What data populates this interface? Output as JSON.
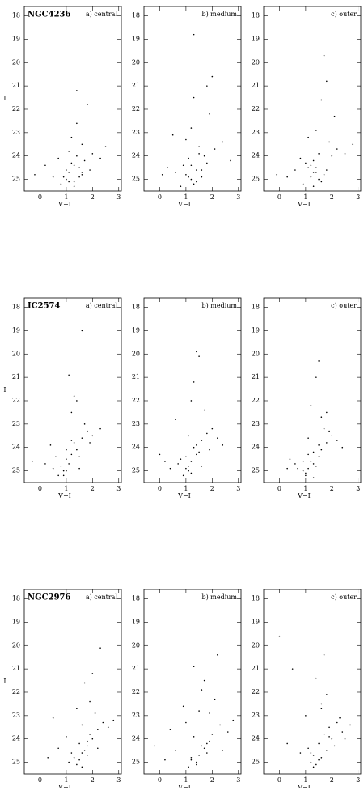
{
  "chart_data": [
    {
      "type": "scatter",
      "title": "NGC4236",
      "panel_label": "a) central",
      "xlabel": "V−I",
      "ylabel": "I",
      "color": "#000000",
      "xlim": [
        -0.6,
        3.1
      ],
      "ylim": [
        25.5,
        17.6
      ],
      "xticks": [
        0,
        1,
        2,
        3
      ],
      "yticks": [
        18,
        19,
        20,
        21,
        22,
        23,
        24,
        25
      ],
      "x": [
        0.9,
        1.1,
        1.3,
        1.5,
        1.2,
        0.8,
        1.6,
        1.4,
        1.0,
        1.7,
        2.0,
        1.3,
        0.5,
        1.1,
        1.9,
        2.3,
        1.4,
        0.2,
        1.2,
        1.6,
        1.8,
        1.0,
        1.5,
        2.5,
        0.7,
        1.3,
        1.1,
        1.4,
        -0.2,
        1.6
      ],
      "y": [
        24.9,
        24.7,
        25.1,
        24.5,
        24.3,
        25.2,
        24.8,
        24.0,
        24.6,
        24.2,
        23.9,
        25.3,
        24.9,
        23.8,
        24.6,
        24.1,
        22.6,
        24.4,
        23.2,
        23.5,
        21.8,
        25.0,
        24.9,
        23.6,
        24.1,
        24.4,
        25.1,
        21.2,
        24.8,
        24.7
      ]
    },
    {
      "type": "scatter",
      "panel_label": "b) medium",
      "xlabel": "V−I",
      "color": "#000000",
      "xlim": [
        -0.6,
        3.1
      ],
      "ylim": [
        25.5,
        17.6
      ],
      "xticks": [
        0,
        1,
        2,
        3
      ],
      "yticks": [
        18,
        19,
        20,
        21,
        22,
        23,
        24,
        25
      ],
      "x": [
        1.0,
        1.2,
        1.4,
        0.9,
        1.6,
        1.3,
        1.1,
        1.8,
        0.6,
        1.5,
        2.1,
        1.2,
        0.3,
        1.7,
        1.4,
        2.4,
        1.0,
        1.9,
        1.3,
        0.8,
        1.6,
        2.0,
        1.1,
        1.5,
        2.7,
        0.1,
        1.3,
        1.8,
        1.2,
        0.5
      ],
      "y": [
        24.8,
        25.0,
        24.6,
        24.4,
        24.9,
        25.2,
        24.1,
        24.3,
        24.7,
        23.9,
        23.7,
        22.8,
        24.5,
        24.0,
        25.1,
        23.4,
        23.3,
        22.2,
        21.5,
        25.3,
        24.6,
        20.6,
        24.9,
        23.6,
        24.2,
        24.8,
        18.8,
        21.0,
        24.4,
        23.1
      ]
    },
    {
      "type": "scatter",
      "panel_label": "c) outer",
      "xlabel": "V−I",
      "color": "#000000",
      "xlim": [
        -0.6,
        3.1
      ],
      "ylim": [
        25.5,
        17.6
      ],
      "xticks": [
        0,
        1,
        2,
        3
      ],
      "yticks": [
        18,
        19,
        20,
        21,
        22,
        23,
        24,
        25
      ],
      "x": [
        1.2,
        1.4,
        1.6,
        1.1,
        1.3,
        1.8,
        0.9,
        1.5,
        2.0,
        1.7,
        1.3,
        0.6,
        2.2,
        1.4,
        1.9,
        1.0,
        2.5,
        0.3,
        1.6,
        1.2,
        1.8,
        2.1,
        1.5,
        0.8,
        1.3,
        2.8,
        1.7,
        1.1,
        -0.1,
        1.4
      ],
      "y": [
        24.9,
        24.7,
        25.1,
        24.5,
        24.2,
        24.6,
        25.2,
        23.9,
        24.0,
        24.8,
        25.3,
        24.6,
        23.7,
        22.9,
        23.4,
        24.3,
        23.9,
        24.9,
        21.6,
        24.4,
        20.8,
        22.3,
        25.0,
        24.1,
        24.7,
        23.5,
        19.7,
        23.2,
        24.8,
        24.5
      ]
    },
    {
      "type": "scatter",
      "title": "IC2574",
      "panel_label": "a) central",
      "xlabel": "V−I",
      "ylabel": "I",
      "color": "#000000",
      "xlim": [
        -0.6,
        3.1
      ],
      "ylim": [
        25.5,
        17.6
      ],
      "xticks": [
        0,
        1,
        2,
        3
      ],
      "yticks": [
        18,
        19,
        20,
        21,
        22,
        23,
        24,
        25
      ],
      "x": [
        0.8,
        1.0,
        1.2,
        0.9,
        1.4,
        1.1,
        0.7,
        1.3,
        1.6,
        1.5,
        0.5,
        1.8,
        1.0,
        0.2,
        1.7,
        1.2,
        2.0,
        0.4,
        1.3,
        1.5,
        0.9,
        1.9,
        1.1,
        2.3,
        0.6,
        1.4,
        1.0,
        1.6,
        -0.3,
        1.2
      ],
      "y": [
        24.8,
        24.5,
        24.3,
        25.0,
        24.1,
        24.7,
        25.2,
        23.8,
        23.6,
        24.4,
        24.9,
        23.3,
        24.1,
        24.7,
        23.0,
        22.5,
        23.5,
        23.9,
        21.8,
        24.9,
        25.2,
        23.8,
        20.9,
        23.2,
        24.4,
        22.0,
        25.0,
        19.0,
        24.6,
        23.7
      ]
    },
    {
      "type": "scatter",
      "panel_label": "b) medium",
      "xlabel": "V−I",
      "color": "#000000",
      "xlim": [
        -0.6,
        3.1
      ],
      "ylim": [
        25.5,
        17.6
      ],
      "xticks": [
        0,
        1,
        2,
        3
      ],
      "yticks": [
        18,
        19,
        20,
        21,
        22,
        23,
        24,
        25
      ],
      "x": [
        1.0,
        1.2,
        0.9,
        1.4,
        1.1,
        1.3,
        0.7,
        1.6,
        1.5,
        1.8,
        0.4,
        1.2,
        1.0,
        2.0,
        0.2,
        1.7,
        1.4,
        2.2,
        0.6,
        1.3,
        1.1,
        1.9,
        1.5,
        0.8,
        2.4,
        1.2,
        1.6,
        0.0,
        1.4,
        1.1
      ],
      "y": [
        24.9,
        24.6,
        25.2,
        24.3,
        24.8,
        24.0,
        24.7,
        23.7,
        24.2,
        23.4,
        24.9,
        25.1,
        24.4,
        23.2,
        24.6,
        22.4,
        23.9,
        23.6,
        22.8,
        21.2,
        25.0,
        24.1,
        20.1,
        24.5,
        23.9,
        22.0,
        24.8,
        24.3,
        19.9,
        23.5
      ]
    },
    {
      "type": "scatter",
      "panel_label": "c) outer",
      "xlabel": "V−I",
      "color": "#000000",
      "xlim": [
        -0.6,
        3.1
      ],
      "ylim": [
        25.5,
        17.6
      ],
      "xticks": [
        0,
        1,
        2,
        3
      ],
      "yticks": [
        18,
        19,
        20,
        21,
        22,
        23,
        24,
        25
      ],
      "x": [
        1.1,
        1.3,
        1.0,
        1.5,
        1.2,
        0.9,
        1.6,
        1.4,
        0.7,
        1.8,
        1.3,
        2.0,
        0.4,
        1.5,
        1.1,
        1.7,
        2.2,
        0.3,
        1.6,
        1.2,
        1.9,
        0.9,
        1.4,
        2.4,
        1.0,
        1.5,
        0.6,
        1.8,
        1.3,
        1.1
      ],
      "y": [
        24.9,
        24.7,
        25.2,
        24.4,
        24.6,
        25.0,
        24.1,
        24.8,
        24.9,
        23.8,
        25.3,
        23.5,
        24.5,
        23.9,
        24.3,
        23.2,
        23.7,
        24.9,
        22.7,
        22.2,
        23.3,
        24.6,
        21.0,
        24.0,
        25.1,
        20.3,
        24.7,
        22.5,
        24.2,
        23.6
      ]
    },
    {
      "type": "scatter",
      "title": "NGC2976",
      "panel_label": "a) central",
      "xlabel": "V−I",
      "ylabel": "I",
      "color": "#000000",
      "xlim": [
        -0.6,
        3.1
      ],
      "ylim": [
        25.5,
        17.6
      ],
      "xticks": [
        0,
        1,
        2,
        3
      ],
      "yticks": [
        18,
        19,
        20,
        21,
        22,
        23,
        24,
        25
      ],
      "x": [
        1.6,
        1.8,
        1.5,
        2.0,
        1.4,
        1.7,
        1.9,
        1.3,
        2.2,
        1.6,
        1.1,
        2.4,
        1.8,
        0.7,
        2.1,
        1.5,
        2.6,
        0.3,
        1.9,
        1.7,
        1.2,
        2.3,
        1.0,
        1.6,
        2.8,
        2.0,
        1.4,
        0.5,
        1.8,
        2.2
      ],
      "y": [
        24.6,
        24.3,
        24.9,
        24.0,
        25.1,
        24.5,
        23.8,
        24.8,
        23.6,
        23.4,
        25.0,
        23.3,
        24.7,
        24.4,
        22.9,
        24.2,
        23.5,
        24.8,
        22.4,
        21.6,
        24.6,
        20.1,
        23.9,
        25.2,
        23.2,
        21.2,
        22.7,
        23.1,
        24.1,
        24.4
      ]
    },
    {
      "type": "scatter",
      "panel_label": "b) medium",
      "xlabel": "V−I",
      "color": "#000000",
      "xlim": [
        -0.6,
        3.1
      ],
      "ylim": [
        25.5,
        17.6
      ],
      "xticks": [
        0,
        1,
        2,
        3
      ],
      "yticks": [
        18,
        19,
        20,
        21,
        22,
        23,
        24,
        25
      ],
      "x": [
        1.5,
        1.7,
        1.4,
        1.9,
        1.2,
        1.6,
        2.0,
        1.1,
        1.8,
        1.3,
        0.6,
        2.3,
        1.5,
        0.2,
        2.1,
        1.0,
        2.6,
        1.7,
        0.9,
        1.4,
        2.2,
        1.8,
        0.4,
        1.6,
        2.8,
        1.2,
        1.9,
        -0.2,
        1.3,
        2.4
      ],
      "y": [
        24.7,
        24.4,
        25.0,
        24.1,
        24.8,
        24.3,
        23.8,
        25.2,
        24.6,
        23.9,
        24.5,
        23.4,
        22.8,
        24.9,
        22.3,
        23.3,
        23.7,
        21.5,
        22.6,
        25.1,
        20.4,
        24.2,
        23.6,
        21.9,
        23.2,
        24.9,
        22.9,
        24.3,
        20.9,
        24.5
      ]
    },
    {
      "type": "scatter",
      "panel_label": "c) outer",
      "xlabel": "V−I",
      "color": "#000000",
      "xlim": [
        -0.6,
        3.1
      ],
      "ylim": [
        25.5,
        17.6
      ],
      "xticks": [
        0,
        1,
        2,
        3
      ],
      "yticks": [
        18,
        19,
        20,
        21,
        22,
        23,
        24,
        25
      ],
      "x": [
        1.6,
        1.4,
        1.8,
        1.5,
        1.3,
        2.0,
        1.7,
        1.2,
        1.9,
        1.1,
        2.2,
        1.5,
        0.8,
        2.4,
        1.6,
        0.3,
        1.8,
        2.7,
        1.0,
        1.4,
        2.1,
        0.5,
        1.7,
        1.3,
        2.5,
        0.0,
        1.9,
        1.6,
        1.2,
        2.3
      ],
      "y": [
        24.8,
        25.1,
        24.5,
        24.2,
        24.7,
        24.0,
        23.8,
        25.0,
        23.5,
        24.4,
        23.3,
        24.9,
        24.6,
        23.7,
        22.7,
        24.2,
        22.1,
        23.4,
        23.0,
        21.4,
        24.3,
        21.0,
        20.4,
        25.2,
        24.0,
        19.6,
        23.9,
        22.5,
        24.6,
        23.1
      ]
    }
  ]
}
